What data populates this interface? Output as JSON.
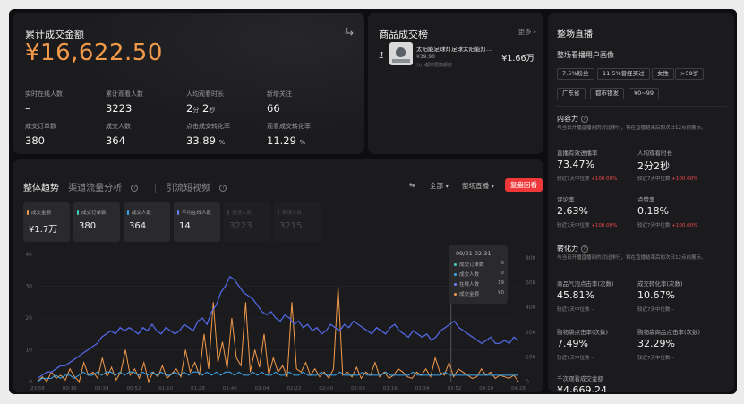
{
  "total": {
    "title": "累计成交金额",
    "gmv": "¥16,622.50",
    "metrics": [
      {
        "label": "实时在线人数",
        "value": "–"
      },
      {
        "label": "累计观看人数",
        "value": "3223"
      },
      {
        "label": "人均观看时长",
        "value_a": "2",
        "unit_a": "分",
        "value_b": "2",
        "unit_b": "秒"
      },
      {
        "label": "新增关注",
        "value": "66"
      },
      {
        "label": "成交订单数",
        "value": "380"
      },
      {
        "label": "成交人数",
        "value": "364"
      },
      {
        "label": "点击成交转化率",
        "value": "33.89",
        "unit": "%"
      },
      {
        "label": "观看成交转化率",
        "value": "11.29",
        "unit": "%"
      }
    ]
  },
  "ranking": {
    "title": "商品成交榜",
    "more": "更多 ›",
    "item": {
      "index": "1",
      "name": "太阳能足球灯足球太阳能灯...",
      "price": "¥39.90",
      "shop": "九小都家居旗舰店",
      "amount": "¥1.66万"
    }
  },
  "trend": {
    "tabs": [
      "整体趋势",
      "渠道流量分析",
      "引流短视频"
    ],
    "filter_all": "全部 ▾",
    "filter_live": "整场直播 ▾",
    "replay_button": "复盘回看",
    "cards": [
      {
        "label": "成交金额",
        "value": "¥1.7万",
        "color": "#f29a49",
        "dim": false
      },
      {
        "label": "成交订单数",
        "value": "380",
        "color": "#3ccfc0",
        "dim": false
      },
      {
        "label": "成交人数",
        "value": "364",
        "color": "#3aa8f0",
        "dim": false
      },
      {
        "label": "平均在线人数",
        "value": "14",
        "color": "#6a7ef5",
        "dim": false
      },
      {
        "label": "进场人数",
        "value": "3223",
        "color": "#3a3a3e",
        "dim": true
      },
      {
        "label": "离场人数",
        "value": "3215",
        "color": "#3a3a3e",
        "dim": true
      }
    ],
    "tooltip": {
      "time": "09/21 02:31",
      "rows": [
        {
          "label": "成交订单数",
          "value": "0",
          "color": "#3ccfc0"
        },
        {
          "label": "成交人数",
          "value": "0",
          "color": "#3aa8f0"
        },
        {
          "label": "在线人数",
          "value": "19",
          "color": "#6a7ef5"
        },
        {
          "label": "成交金额",
          "value": "¥0",
          "color": "#f29a49"
        }
      ]
    }
  },
  "chart_data": {
    "type": "line",
    "left_axis_ticks": [
      "40",
      "30",
      "20",
      "10",
      "0"
    ],
    "right_axis_ticks": [
      "800",
      "600",
      "400",
      "200",
      "100",
      "0"
    ],
    "x_ticks": [
      "23:58",
      "00:16",
      "00:34",
      "00:52",
      "01:10",
      "01:28",
      "01:46",
      "02:04",
      "02:22",
      "02:40",
      "02:58",
      "03:16",
      "03:34",
      "03:52",
      "04:10",
      "04:28"
    ],
    "series": [
      {
        "name": "平均在线人数",
        "color": "#4f66e0",
        "values": [
          1,
          2,
          3,
          3,
          4,
          5,
          5,
          6,
          7,
          8,
          9,
          10,
          11,
          12,
          14,
          15,
          16,
          15,
          17,
          16,
          17,
          16,
          15,
          17,
          16,
          18,
          16,
          15,
          17,
          16,
          15,
          16,
          18,
          17,
          16,
          19,
          20,
          18,
          22,
          24,
          28,
          30,
          33,
          32,
          30,
          28,
          27,
          26,
          24,
          22,
          21,
          22,
          20,
          19,
          21,
          20,
          18,
          19,
          17,
          18,
          16,
          17,
          15,
          16,
          18,
          17,
          16,
          18,
          17,
          19,
          18,
          17,
          16,
          15,
          17,
          16,
          15,
          17,
          18,
          16,
          15,
          14,
          16,
          15,
          14,
          15,
          13,
          14,
          16,
          17,
          18,
          19,
          17,
          16,
          15,
          14,
          13,
          12,
          13,
          14,
          12,
          12,
          13,
          12,
          14,
          13
        ]
      },
      {
        "name": "成交金额",
        "color": "#f29a49",
        "values": [
          0,
          30,
          0,
          60,
          20,
          40,
          10,
          80,
          30,
          0,
          120,
          40,
          60,
          20,
          150,
          30,
          90,
          10,
          60,
          200,
          40,
          80,
          20,
          120,
          0,
          60,
          30,
          100,
          20,
          50,
          80,
          30,
          200,
          60,
          120,
          40,
          300,
          80,
          500,
          120,
          250,
          80,
          400,
          150,
          100,
          500,
          60,
          200,
          90,
          300,
          40,
          150,
          60,
          100,
          30,
          500,
          80,
          60,
          120,
          40,
          80,
          30,
          60,
          20,
          80,
          600,
          40,
          60,
          30,
          90,
          20,
          60,
          40,
          120,
          30,
          60,
          20,
          40,
          80,
          60,
          30,
          20,
          60,
          40,
          80,
          30,
          150,
          60,
          40,
          120,
          30,
          80,
          60,
          40,
          20,
          30,
          80,
          40,
          60,
          20,
          40,
          30,
          20,
          40,
          0
        ]
      },
      {
        "name": "成交人数",
        "color": "#3aa8f0",
        "values": [
          0,
          1,
          1,
          1,
          2,
          1,
          2,
          2,
          1,
          2,
          3,
          2,
          2,
          3,
          2,
          3,
          3,
          2,
          3,
          2,
          3,
          3,
          2,
          3,
          2,
          3,
          2,
          3,
          2,
          2,
          3,
          2,
          3,
          2,
          3,
          3,
          2,
          3,
          2,
          3,
          2,
          3,
          3,
          2,
          3,
          2,
          2,
          3,
          2,
          3,
          2,
          2,
          3,
          2,
          2,
          3,
          2,
          2,
          3,
          2,
          2,
          2,
          3,
          2,
          2,
          2,
          3,
          2,
          2,
          2,
          2,
          3,
          2,
          2,
          2,
          2,
          3,
          2,
          2,
          2,
          2,
          2,
          3,
          2,
          2,
          2,
          2,
          2,
          2,
          3,
          2,
          2,
          2,
          2,
          2,
          2,
          2,
          2,
          2,
          2,
          2,
          2,
          2,
          2,
          2,
          2
        ]
      }
    ]
  },
  "side": {
    "title": "整场直播",
    "persona_title": "整场看播用户画像",
    "chips": [
      "7.5%粉丝",
      "11.5%曾经买过",
      "女性",
      ">59岁",
      "广东省",
      "都市银发",
      "¥0~99"
    ],
    "content": {
      "head": "内容力",
      "desc": "与当日开播直播间的对比排行，将在直播结束后的次日12点前展示。",
      "items": [
        {
          "label": "直播有效进播率",
          "value": "73.47%",
          "cmp": "较近7天中位数 ",
          "cmp_up": "+100.00%"
        },
        {
          "label": "人均观看时长",
          "value": "2分2秒",
          "cmp": "较近7天中位数 ",
          "cmp_up": "+100.00%"
        },
        {
          "label": "评论率",
          "value": "2.63%",
          "cmp": "较近7天中位数 ",
          "cmp_up": "+100.00%"
        },
        {
          "label": "点赞率",
          "value": "0.18%",
          "cmp": "较近7天中位数 ",
          "cmp_up": "+100.00%"
        }
      ]
    },
    "conversion": {
      "head": "转化力",
      "desc": "与当日开播直播间的对比排行，将在直播结束后的次日12点前展示。",
      "items": [
        {
          "label": "商品气泡点击率(次数)",
          "value": "45.81%",
          "cmp": "较近7天中位数 –"
        },
        {
          "label": "成交转化率(次数)",
          "value": "10.67%",
          "cmp": "较近7天中位数 –"
        },
        {
          "label": "购物袋点击率(次数)",
          "value": "7.49%",
          "cmp": "较近7天中位数 –"
        },
        {
          "label": "购物袋商品点击率(次数)",
          "value": "32.29%",
          "cmp": "较近7天中位数 –"
        }
      ],
      "last_label": "千次观看成交金额",
      "last_value": "¥4,669.24"
    }
  }
}
